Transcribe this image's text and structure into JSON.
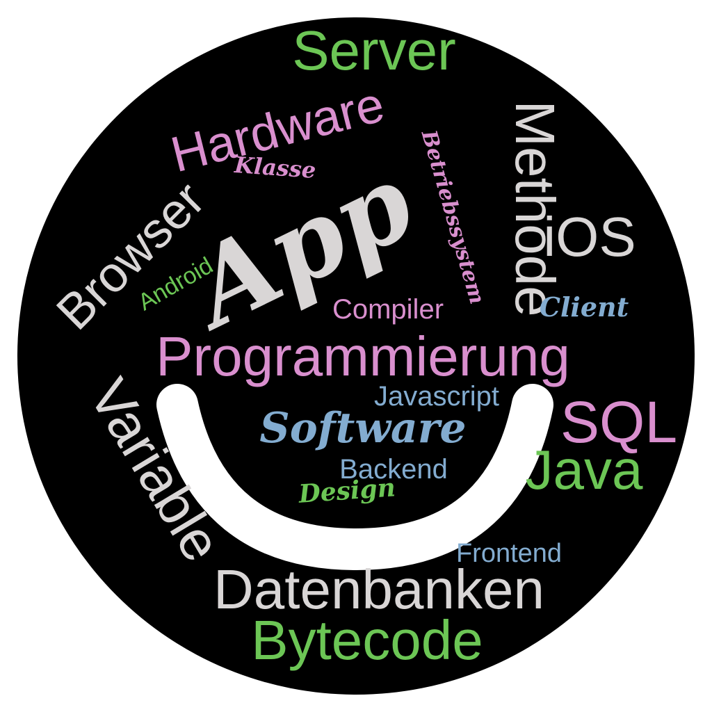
{
  "colors": {
    "background": "#ffffff",
    "circle": "#000000",
    "smile": "#ffffff",
    "green": "#6cc655",
    "pink": "#d98fce",
    "gray": "#d9d6d6",
    "blue": "#83acd0"
  },
  "words": {
    "server": "Server",
    "hardware": "Hardware",
    "methode": "Methode",
    "betriebssystem": "Betriebssystem",
    "klasse": "Klasse",
    "app": "App",
    "browser": "Browser",
    "ios": "iOS",
    "android": "Android",
    "compiler": "Compiler",
    "client": "Client",
    "programmierung": "Programmierung",
    "javascript": "Javascript",
    "software": "Software",
    "sql": "SQL",
    "variable": "Variable",
    "backend": "Backend",
    "java": "Java",
    "design": "Design",
    "frontend": "Frontend",
    "datenbanken": "Datenbanken",
    "bytecode": "Bytecode"
  }
}
